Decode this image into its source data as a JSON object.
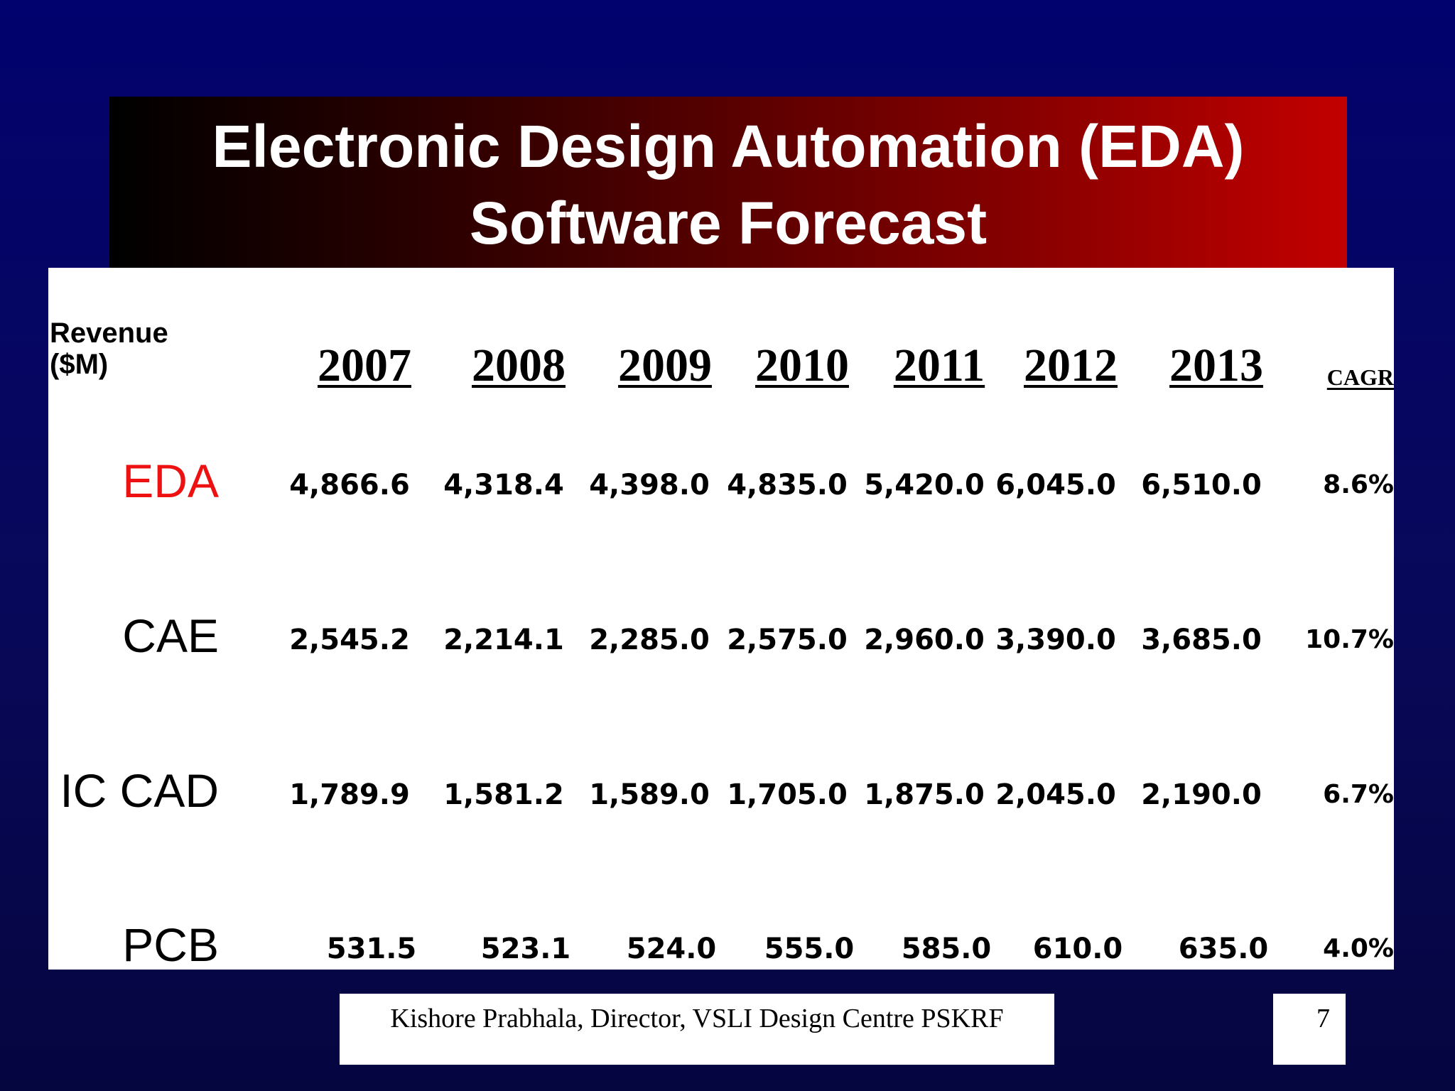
{
  "slide": {
    "title_line1": "Electronic Design Automation (EDA)",
    "title_line2": "Software Forecast"
  },
  "table": {
    "corner_label_line1": "Revenue",
    "corner_label_line2": "($M)",
    "years": [
      "2007",
      "2008",
      "2009",
      "2010",
      "2011",
      "2012",
      "2013"
    ],
    "cagr_header": "CAGR",
    "rows": [
      {
        "label": "EDA",
        "values": [
          "4,866.6",
          "4,318.4",
          "4,398.0",
          "4,835.0",
          "5,420.0",
          "6,045.0",
          "6,510.0"
        ],
        "cagr": "8.6%",
        "label_color": "#ee1111"
      },
      {
        "label": "CAE",
        "values": [
          "2,545.2",
          "2,214.1",
          "2,285.0",
          "2,575.0",
          "2,960.0",
          "3,390.0",
          "3,685.0"
        ],
        "cagr": "10.7%"
      },
      {
        "label": "IC CAD",
        "values": [
          "1,789.9",
          "1,581.2",
          "1,589.0",
          "1,705.0",
          "1,875.0",
          "2,045.0",
          "2,190.0"
        ],
        "cagr": "6.7%"
      },
      {
        "label": "PCB",
        "values": [
          "531.5",
          "523.1",
          "524.0",
          "555.0",
          "585.0",
          "610.0",
          "635.0"
        ],
        "cagr": "4.0%"
      }
    ]
  },
  "footer": {
    "text": "Kishore Prabhala, Director, VSLI Design Centre PSKRF",
    "page_number": "7"
  },
  "colors": {
    "background": "#02026e",
    "title_gradient_start": "#000000",
    "title_gradient_end": "#c20000",
    "accent_label": "#ee1111"
  }
}
